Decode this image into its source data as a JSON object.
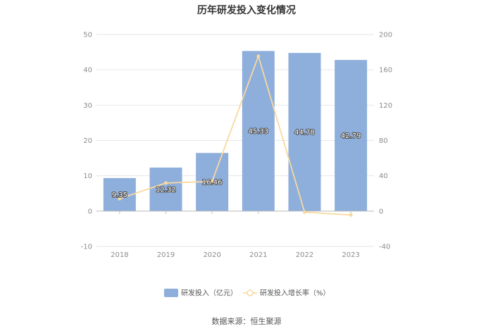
{
  "chart_data": {
    "type": "bar",
    "title": "历年研发投入变化情况",
    "categories": [
      "2018",
      "2019",
      "2020",
      "2021",
      "2022",
      "2023"
    ],
    "series": [
      {
        "name": "研发投入（亿元）",
        "type": "bar",
        "axis": "left",
        "values": [
          9.35,
          12.32,
          16.46,
          45.33,
          44.78,
          42.79
        ],
        "labels": [
          "9.35",
          "12.32",
          "16.46",
          "45.33",
          "44.78",
          "42.79"
        ],
        "color": "#8eaedb"
      },
      {
        "name": "研发投入增长率（%）",
        "type": "line",
        "axis": "right",
        "values": [
          14,
          31.8,
          33.6,
          175.4,
          -1.2,
          -4.4
        ],
        "color": "#f8d9a0"
      }
    ],
    "y_left": {
      "min": -10,
      "max": 50,
      "ticks": [
        "-10",
        "0",
        "10",
        "20",
        "30",
        "40",
        "50"
      ]
    },
    "y_right": {
      "min": -40,
      "max": 200,
      "ticks": [
        "-40",
        "0",
        "40",
        "80",
        "120",
        "160",
        "200"
      ]
    },
    "grid": true,
    "legend_position": "bottom"
  },
  "source": "数据来源：恒生聚源"
}
